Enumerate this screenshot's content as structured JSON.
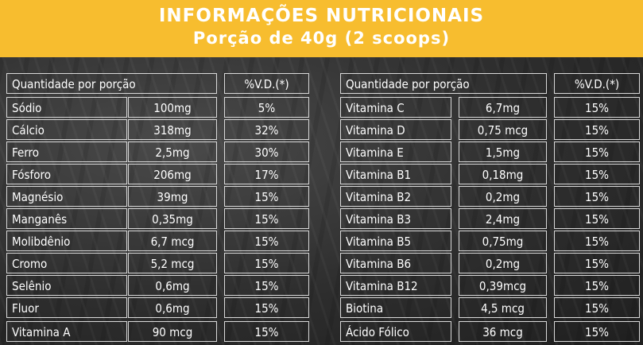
{
  "header": {
    "title": "INFORMAÇÕES NUTRICIONAIS",
    "subtitle": "Porção de 40g (2 scoops)"
  },
  "left_table": {
    "header_label": "Quantidade por porção",
    "header_pct": "%V.D.(*)",
    "rows": [
      {
        "nutrient": "Sódio",
        "amount": "100mg",
        "pct": "5%"
      },
      {
        "nutrient": "Cálcio",
        "amount": "318mg",
        "pct": "32%"
      },
      {
        "nutrient": "Ferro",
        "amount": "2,5mg",
        "pct": "30%"
      },
      {
        "nutrient": "Fósforo",
        "amount": "206mg",
        "pct": "17%"
      },
      {
        "nutrient": "Magnésio",
        "amount": "39mg",
        "pct": "15%"
      },
      {
        "nutrient": "Manganês",
        "amount": "0,35mg",
        "pct": "15%"
      },
      {
        "nutrient": "Molibdênio",
        "amount": "6,7 mcg",
        "pct": "15%"
      },
      {
        "nutrient": "Cromo",
        "amount": "5,2 mcg",
        "pct": "15%"
      },
      {
        "nutrient": "Selênio",
        "amount": "0,6mg",
        "pct": "15%"
      },
      {
        "nutrient": "Fluor",
        "amount": "0,6mg",
        "pct": "15%"
      },
      {
        "nutrient": "Vitamina A",
        "amount": "90 mcg",
        "pct": "15%"
      }
    ]
  },
  "right_table": {
    "header_label": "Quantidade por porção",
    "header_pct": "%V.D.(*)",
    "rows": [
      {
        "nutrient": "Vitamina C",
        "amount": "6,7mg",
        "pct": "15%"
      },
      {
        "nutrient": "Vitamina D",
        "amount": "0,75 mcg",
        "pct": "15%"
      },
      {
        "nutrient": "Vitamina E",
        "amount": "1,5mg",
        "pct": "15%"
      },
      {
        "nutrient": "Vitamina B1",
        "amount": "0,18mg",
        "pct": "15%"
      },
      {
        "nutrient": "Vitamina B2",
        "amount": "0,2mg",
        "pct": "15%"
      },
      {
        "nutrient": "Vitamina B3",
        "amount": "2,4mg",
        "pct": "15%"
      },
      {
        "nutrient": "Vitamina B5",
        "amount": "0,75mg",
        "pct": "15%"
      },
      {
        "nutrient": "Vitamina B6",
        "amount": "0,2mg",
        "pct": "15%"
      },
      {
        "nutrient": "Vitamina B12",
        "amount": "0,39mcg",
        "pct": "15%"
      },
      {
        "nutrient": "Biotina",
        "amount": "4,5 mcg",
        "pct": "15%"
      },
      {
        "nutrient": "Ácido Fólico",
        "amount": "36 mcg",
        "pct": "15%"
      }
    ]
  }
}
